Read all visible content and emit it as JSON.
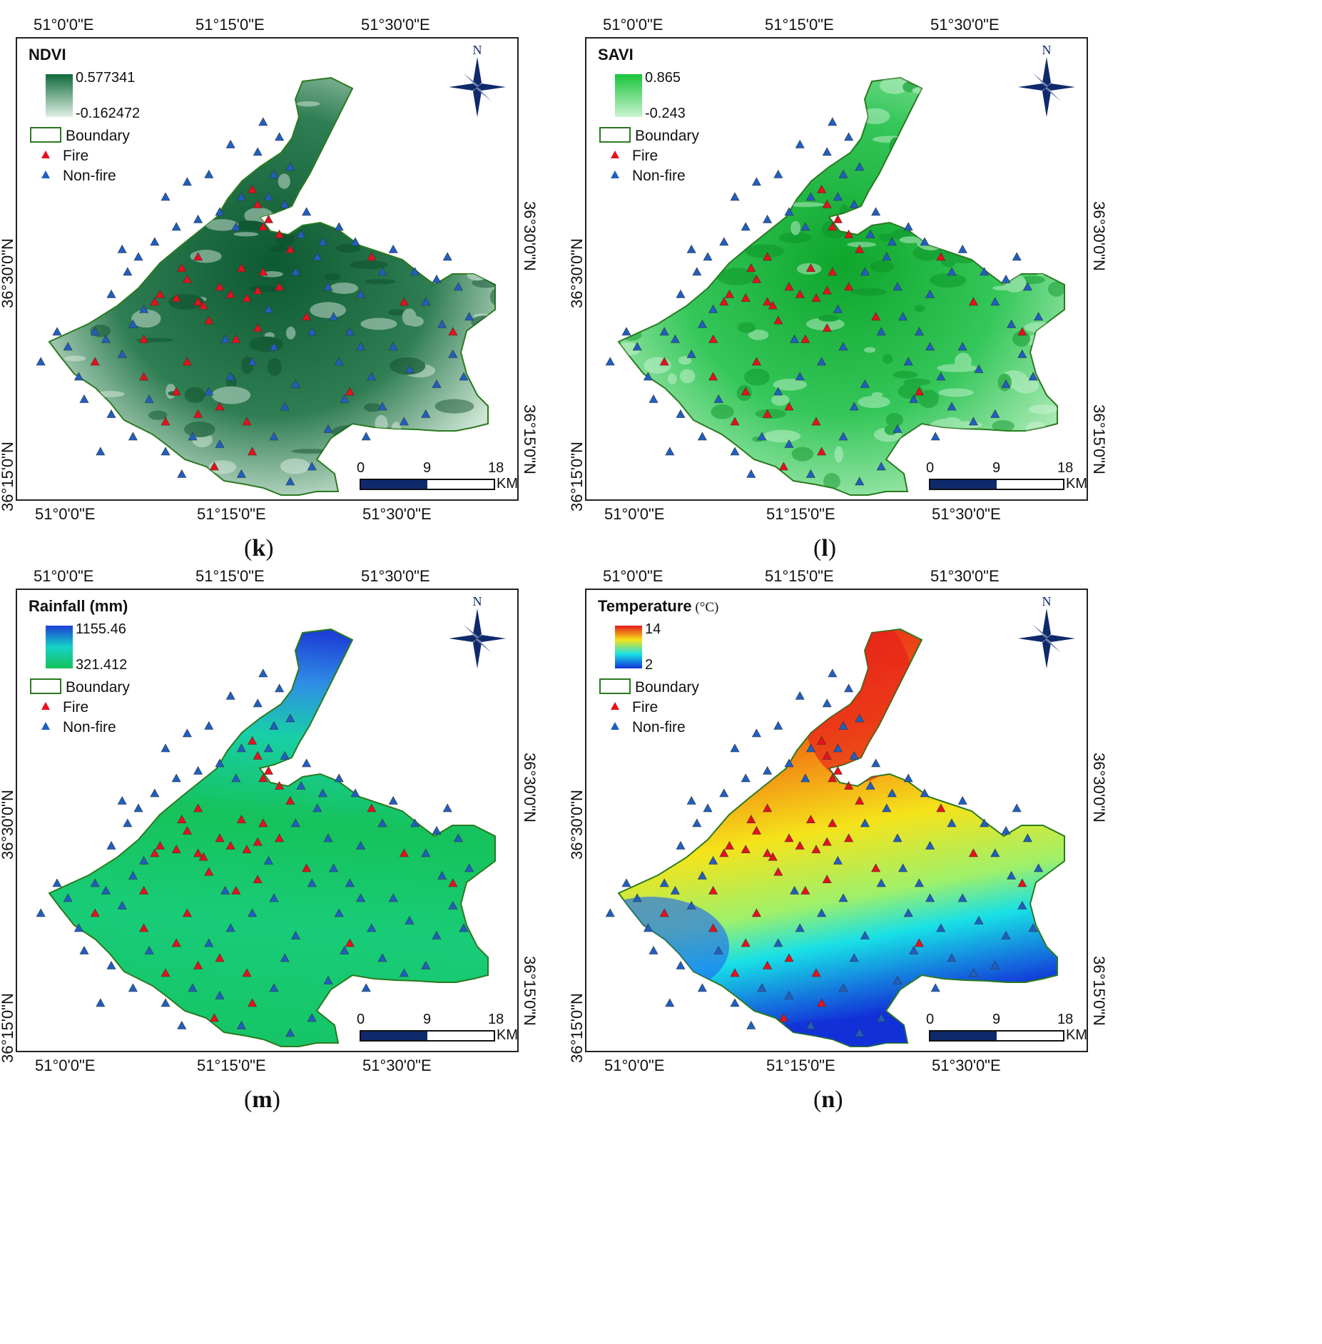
{
  "panels": [
    {
      "id": "k",
      "caption_letter": "k",
      "legend_title": "NDVI",
      "legend_unit": "",
      "ramp_max": "0.577341",
      "ramp_min": "-0.162472",
      "ramp_colors": [
        "#0f6a3a",
        "#dff0e4"
      ],
      "style": "ndvi"
    },
    {
      "id": "l",
      "caption_letter": "l",
      "legend_title": "SAVI",
      "legend_unit": "",
      "ramp_max": "0.865",
      "ramp_min": "-0.243",
      "ramp_colors": [
        "#19c43a",
        "#c9f4cf"
      ],
      "style": "savi"
    },
    {
      "id": "m",
      "caption_letter": "m",
      "legend_title": "Rainfall (mm)",
      "legend_unit": "",
      "ramp_max": "1155.46",
      "ramp_min": "321.412",
      "ramp_colors": [
        "#1d3fd6",
        "#16d1c6",
        "#16c25a"
      ],
      "style": "rain"
    },
    {
      "id": "n",
      "caption_letter": "n",
      "legend_title": "Temperature",
      "legend_unit": "(°C)",
      "ramp_max": "14",
      "ramp_min": "2",
      "ramp_colors": [
        "#e61b1b",
        "#f5e31a",
        "#18e0e6",
        "#1230d8"
      ],
      "style": "temp"
    }
  ],
  "common": {
    "lon_labels": [
      "51°0'0\"E",
      "51°15'0\"E",
      "51°30'0\"E"
    ],
    "lat_labels": [
      "36°30'0\"N",
      "36°15'0\"N"
    ],
    "legend_boundary": "Boundary",
    "legend_fire": "Fire",
    "legend_nonfire": "Non-fire",
    "north_label": "N",
    "scale_labels": [
      "0",
      "9",
      "18"
    ],
    "scale_unit": "KM",
    "colors": {
      "fire": "#e8101b",
      "nonfire": "#1f5fc0",
      "boundary": "#2a7a1f",
      "scalebar": "#0e2a6b"
    }
  },
  "sample_points": {
    "fire": [
      [
        3,
        9
      ],
      [
        -2,
        6
      ],
      [
        -14,
        8
      ],
      [
        -6,
        6.5
      ],
      [
        -16,
        5
      ],
      [
        -10,
        4
      ],
      [
        1,
        4
      ],
      [
        -3,
        3.5
      ],
      [
        -8,
        3
      ],
      [
        -5,
        2.5
      ],
      [
        -13,
        1.5
      ],
      [
        -18,
        2.5
      ],
      [
        -12,
        -0.5
      ],
      [
        -3,
        -1.5
      ],
      [
        6,
        0
      ],
      [
        -16,
        -6
      ],
      [
        -7,
        -3
      ],
      [
        -33,
        -6
      ],
      [
        -24,
        -8
      ],
      [
        -18,
        -10
      ],
      [
        -10,
        -12
      ],
      [
        -5,
        -14
      ],
      [
        -14,
        -13
      ],
      [
        -20,
        -14
      ],
      [
        -4,
        -18
      ],
      [
        -2,
        12
      ],
      [
        1,
        11
      ],
      [
        -1,
        13
      ],
      [
        -3,
        15
      ],
      [
        -4,
        17
      ],
      [
        -21,
        3
      ],
      [
        -22,
        2
      ],
      [
        -17,
        6.5
      ],
      [
        -14,
        2
      ],
      [
        14,
        -10
      ],
      [
        24,
        2
      ],
      [
        33,
        -2
      ],
      [
        18,
        8
      ],
      [
        -24,
        -3
      ],
      [
        -11,
        -20
      ]
    ],
    "nonfire": [
      [
        -43,
        -6
      ],
      [
        -40,
        -2
      ],
      [
        -36,
        -8
      ],
      [
        -35,
        -11
      ],
      [
        -30,
        -13
      ],
      [
        -28,
        -5
      ],
      [
        -26,
        -1
      ],
      [
        -30,
        3
      ],
      [
        -27,
        6
      ],
      [
        -24,
        1
      ],
      [
        -22,
        10
      ],
      [
        -18,
        12
      ],
      [
        -14,
        13
      ],
      [
        -10,
        14
      ],
      [
        -7,
        12
      ],
      [
        -6,
        16
      ],
      [
        -16,
        18
      ],
      [
        -20,
        16
      ],
      [
        -25,
        8
      ],
      [
        -28,
        9
      ],
      [
        -31,
        -3
      ],
      [
        -23,
        -11
      ],
      [
        -20,
        -18
      ],
      [
        -17,
        -21
      ],
      [
        -15,
        -16
      ],
      [
        -12,
        -10
      ],
      [
        -8,
        -8
      ],
      [
        -4,
        -6
      ],
      [
        0,
        -4
      ],
      [
        4,
        -9
      ],
      [
        2,
        -12
      ],
      [
        0,
        -16
      ],
      [
        -6,
        -21
      ],
      [
        -10,
        -17
      ],
      [
        3,
        -22
      ],
      [
        7,
        -20
      ],
      [
        10,
        -15
      ],
      [
        12,
        -6
      ],
      [
        14,
        -2
      ],
      [
        16,
        3
      ],
      [
        20,
        6
      ],
      [
        22,
        9
      ],
      [
        26,
        6
      ],
      [
        28,
        2
      ],
      [
        30,
        5
      ],
      [
        32,
        8
      ],
      [
        34,
        4
      ],
      [
        36,
        0
      ],
      [
        33,
        -5
      ],
      [
        30,
        -9
      ],
      [
        28,
        -13
      ],
      [
        24,
        -14
      ],
      [
        20,
        -12
      ],
      [
        18,
        -8
      ],
      [
        16,
        -4
      ],
      [
        10,
        4
      ],
      [
        8,
        8
      ],
      [
        5,
        11
      ],
      [
        2,
        15
      ],
      [
        -1,
        16
      ],
      [
        0,
        19
      ],
      [
        -3,
        22
      ],
      [
        -2,
        26
      ],
      [
        1,
        24
      ],
      [
        3,
        20
      ],
      [
        6,
        14
      ],
      [
        9,
        10
      ],
      [
        12,
        12
      ],
      [
        15,
        10
      ],
      [
        -8,
        23
      ],
      [
        -12,
        19
      ],
      [
        7,
        -2
      ],
      [
        11,
        0
      ],
      [
        22,
        -4
      ],
      [
        25,
        -7
      ],
      [
        31,
        -1
      ],
      [
        35,
        -8
      ],
      [
        -33,
        -2
      ],
      [
        -38,
        -4
      ],
      [
        -26,
        -16
      ],
      [
        -32,
        -18
      ],
      [
        -9,
        -3
      ],
      [
        -1,
        1
      ],
      [
        4,
        6
      ],
      [
        13,
        -11
      ],
      [
        17,
        -16
      ]
    ]
  }
}
